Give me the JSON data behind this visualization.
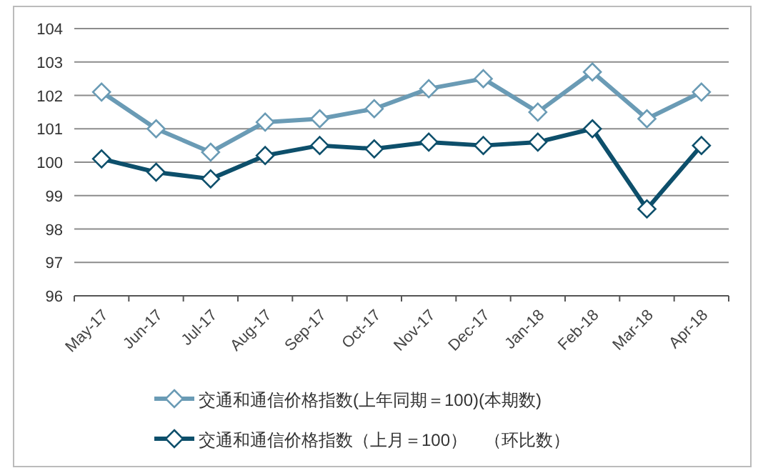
{
  "chart_data": {
    "type": "line",
    "categories": [
      "May-17",
      "Jun-17",
      "Jul-17",
      "Aug-17",
      "Sep-17",
      "Oct-17",
      "Nov-17",
      "Dec-17",
      "Jan-18",
      "Feb-18",
      "Mar-18",
      "Apr-18"
    ],
    "series": [
      {
        "name": "交通和通信价格指数(上年同期＝100)(本期数)",
        "color": "#6a9bb5",
        "values": [
          102.1,
          101.0,
          100.3,
          101.2,
          101.3,
          101.6,
          102.2,
          102.5,
          101.5,
          102.7,
          101.3,
          102.1
        ]
      },
      {
        "name": "交通和通信价格指数（上月＝100）　（环比数）",
        "color": "#0d4f6b",
        "values": [
          100.1,
          99.7,
          99.5,
          100.2,
          100.5,
          100.4,
          100.6,
          100.5,
          100.6,
          101.0,
          98.6,
          100.5
        ]
      }
    ],
    "ylim": [
      96,
      104
    ],
    "yticks": [
      96,
      97,
      98,
      99,
      100,
      101,
      102,
      103,
      104
    ],
    "grid": "y",
    "legend": "bottom",
    "marker": "diamond",
    "line_style": "solid"
  }
}
